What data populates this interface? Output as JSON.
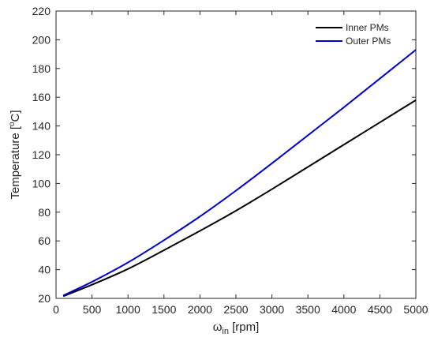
{
  "chart_data": {
    "type": "line",
    "title": "",
    "xlabel": {
      "base": "ω",
      "sub": "in",
      "rest": " [rpm]"
    },
    "ylabel": {
      "pre": "Temperature [",
      "sup": "o",
      "post": "C]"
    },
    "xlim": [
      0,
      5000
    ],
    "ylim": [
      20,
      220
    ],
    "xticks": [
      0,
      500,
      1000,
      1500,
      2000,
      2500,
      3000,
      3500,
      4000,
      4500,
      5000
    ],
    "yticks": [
      20,
      40,
      60,
      80,
      100,
      120,
      140,
      160,
      180,
      200,
      220
    ],
    "grid": false,
    "legend_position": "top-right",
    "series": [
      {
        "name": "Inner PMs",
        "color": "#000000",
        "x": [
          100,
          500,
          1000,
          1500,
          2000,
          2500,
          3000,
          3500,
          4000,
          4500,
          5000
        ],
        "y": [
          21.5,
          29.5,
          40.5,
          53.5,
          67,
          81,
          96,
          111.5,
          127,
          142.5,
          158
        ]
      },
      {
        "name": "Outer PMs",
        "color": "#0000cc",
        "x": [
          100,
          500,
          1000,
          1500,
          2000,
          2500,
          3000,
          3500,
          4000,
          4500,
          5000
        ],
        "y": [
          22,
          31.5,
          45,
          60.5,
          77,
          95,
          114,
          133.5,
          153,
          173,
          193
        ]
      }
    ]
  }
}
